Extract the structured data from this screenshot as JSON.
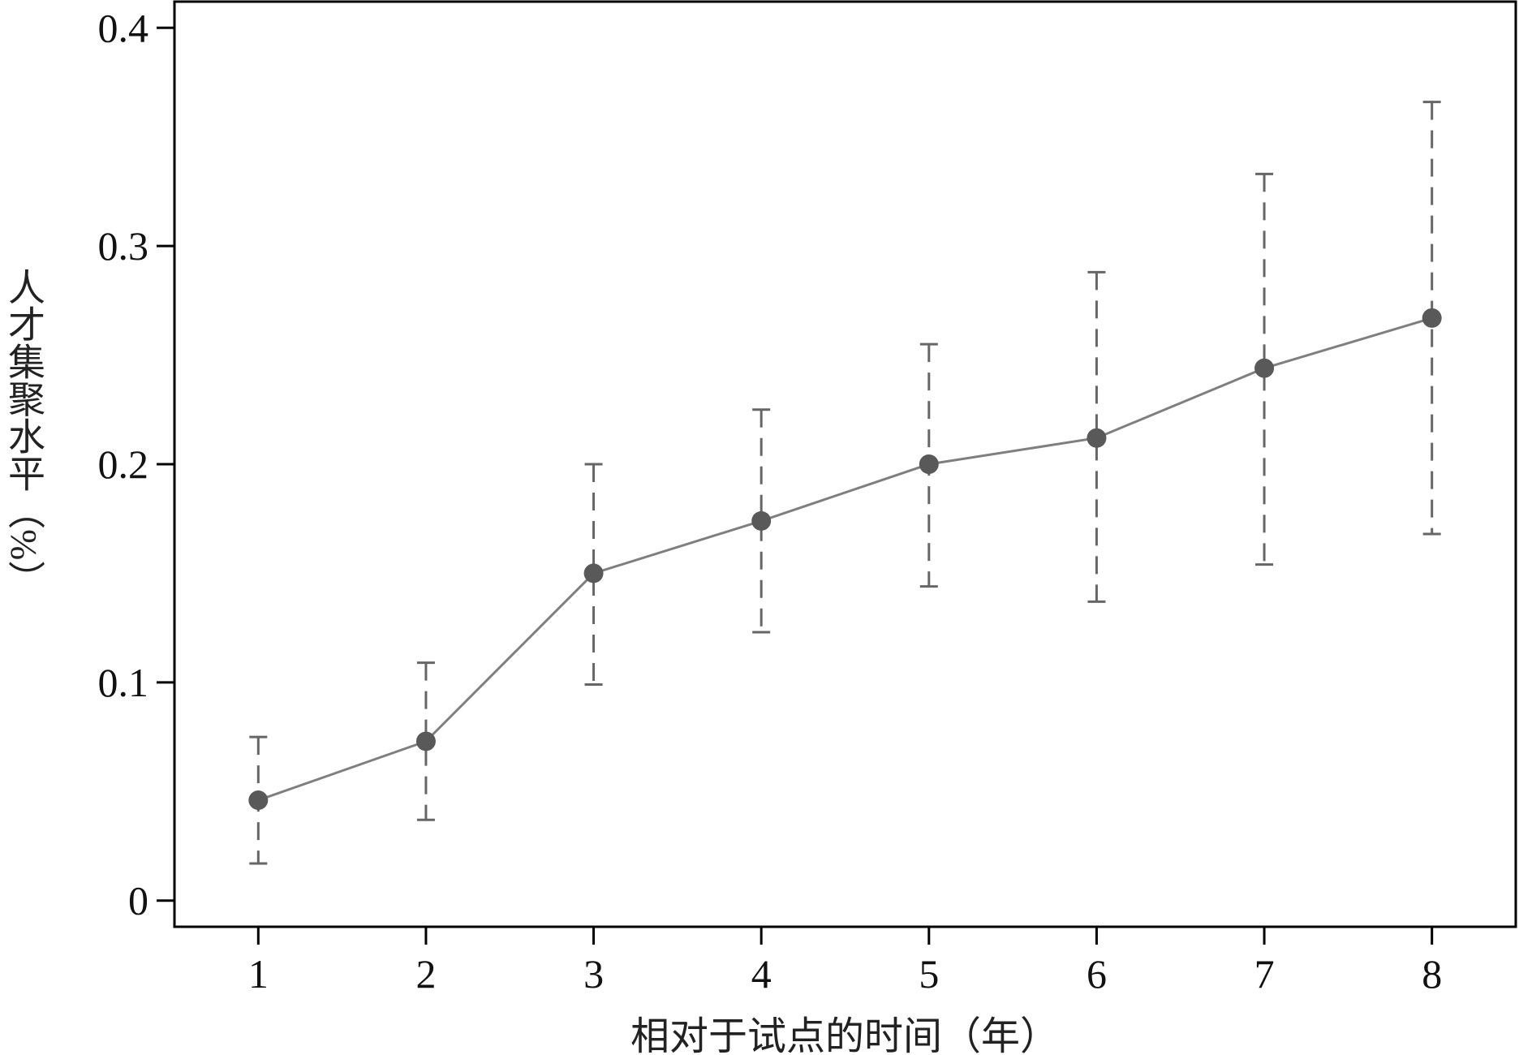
{
  "chart_data": {
    "type": "line",
    "title": "",
    "xlabel": "相对于试点的时间（年）",
    "ylabel": "人才集聚水平（%）",
    "x": [
      1,
      2,
      3,
      4,
      5,
      6,
      7,
      8
    ],
    "series": [
      {
        "values": [
          0.046,
          0.073,
          0.15,
          0.174,
          0.2,
          0.212,
          0.244,
          0.267
        ],
        "ci_lower": [
          0.017,
          0.037,
          0.099,
          0.123,
          0.144,
          0.137,
          0.154,
          0.168
        ],
        "ci_upper": [
          0.075,
          0.109,
          0.2,
          0.225,
          0.255,
          0.288,
          0.333,
          0.366
        ],
        "color": "#7f7f7f",
        "marker_color": "#595959",
        "errorbar_color": "#666666",
        "errorbar_style": "dashed"
      }
    ],
    "xlim": [
      0.5,
      8.5
    ],
    "ylim": [
      -0.012,
      0.412
    ],
    "xticks": [
      "1",
      "2",
      "3",
      "4",
      "5",
      "6",
      "7",
      "8"
    ],
    "yticks": [
      "0",
      "0.1",
      "0.2",
      "0.3",
      "0.4"
    ],
    "ytick_values": [
      0,
      0.1,
      0.2,
      0.3,
      0.4
    ],
    "grid": false,
    "legend": "none"
  }
}
